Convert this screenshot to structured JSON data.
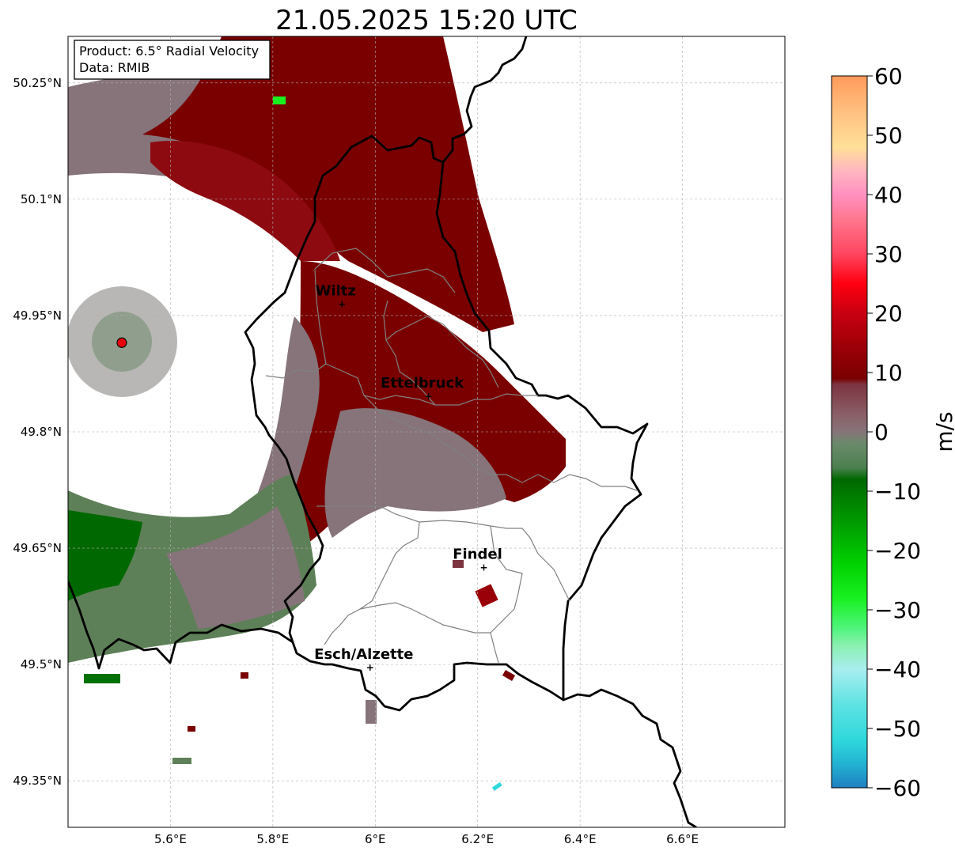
{
  "title": "21.05.2025 15:20 UTC",
  "info_box": {
    "product": "Product: 6.5° Radial Velocity",
    "data": "Data: RMIB"
  },
  "map": {
    "lon_range": [
      5.4,
      6.8
    ],
    "lat_range": [
      49.29,
      50.31
    ],
    "x_ticks": [
      {
        "value": 5.6,
        "label": "5.6°E"
      },
      {
        "value": 5.8,
        "label": "5.8°E"
      },
      {
        "value": 6.0,
        "label": "6°E"
      },
      {
        "value": 6.2,
        "label": "6.2°E"
      },
      {
        "value": 6.4,
        "label": "6.4°E"
      },
      {
        "value": 6.6,
        "label": "6.6°E"
      }
    ],
    "y_ticks": [
      {
        "value": 50.25,
        "label": "50.25°N"
      },
      {
        "value": 50.1,
        "label": "50.1°N"
      },
      {
        "value": 49.95,
        "label": "49.95°N"
      },
      {
        "value": 49.8,
        "label": "49.8°N"
      },
      {
        "value": 49.65,
        "label": "49.65°N"
      },
      {
        "value": 49.5,
        "label": "49.5°N"
      },
      {
        "value": 49.35,
        "label": "49.35°N"
      }
    ],
    "grid": true,
    "radar_site": {
      "lon": 5.505,
      "lat": 49.915,
      "color": "#e8000b"
    },
    "cities": [
      {
        "name": "Wiltz",
        "lon": 5.935,
        "lat": 49.966
      },
      {
        "name": "Ettelbruck",
        "lon": 6.104,
        "lat": 49.847
      },
      {
        "name": "Findel",
        "lon": 6.212,
        "lat": 49.626
      },
      {
        "name": "Esch/Alzette",
        "lon": 5.99,
        "lat": 49.497
      }
    ]
  },
  "colorbar": {
    "label": "m/s",
    "min": -60,
    "max": 60,
    "ticks": [
      {
        "value": 60,
        "label": "60"
      },
      {
        "value": 50,
        "label": "50"
      },
      {
        "value": 40,
        "label": "40"
      },
      {
        "value": 30,
        "label": "30"
      },
      {
        "value": 20,
        "label": "20"
      },
      {
        "value": 10,
        "label": "10"
      },
      {
        "value": 0,
        "label": "0"
      },
      {
        "value": -10,
        "label": "−10"
      },
      {
        "value": -20,
        "label": "−20"
      },
      {
        "value": -30,
        "label": "−30"
      },
      {
        "value": -40,
        "label": "−40"
      },
      {
        "value": -50,
        "label": "−50"
      },
      {
        "value": -60,
        "label": "−60"
      }
    ],
    "stops": [
      {
        "value": -60,
        "color": "#1f7fc0"
      },
      {
        "value": -56,
        "color": "#22b2d2"
      },
      {
        "value": -52,
        "color": "#2ed8dc"
      },
      {
        "value": -46,
        "color": "#5ee2e2"
      },
      {
        "value": -40,
        "color": "#a8eef0"
      },
      {
        "value": -36,
        "color": "#8af0b0"
      },
      {
        "value": -33,
        "color": "#4ef57a"
      },
      {
        "value": -28,
        "color": "#18f020"
      },
      {
        "value": -22,
        "color": "#00d000"
      },
      {
        "value": -16,
        "color": "#00a000"
      },
      {
        "value": -8,
        "color": "#006800"
      },
      {
        "value": -6,
        "color": "#4c8050"
      },
      {
        "value": -2,
        "color": "#6a8a6a"
      },
      {
        "value": 0,
        "color": "#86747a"
      },
      {
        "value": 3,
        "color": "#8a5e66"
      },
      {
        "value": 8,
        "color": "#7c3440"
      },
      {
        "value": 9,
        "color": "#7a0000"
      },
      {
        "value": 14,
        "color": "#9a0008"
      },
      {
        "value": 20,
        "color": "#c80010"
      },
      {
        "value": 25,
        "color": "#ff0010"
      },
      {
        "value": 30,
        "color": "#ff4660"
      },
      {
        "value": 36,
        "color": "#ff7890"
      },
      {
        "value": 40,
        "color": "#ff90c0"
      },
      {
        "value": 44,
        "color": "#ffb6c0"
      },
      {
        "value": 48,
        "color": "#ffe098"
      },
      {
        "value": 54,
        "color": "#ffc080"
      },
      {
        "value": 60,
        "color": "#ff9a5a"
      }
    ]
  }
}
